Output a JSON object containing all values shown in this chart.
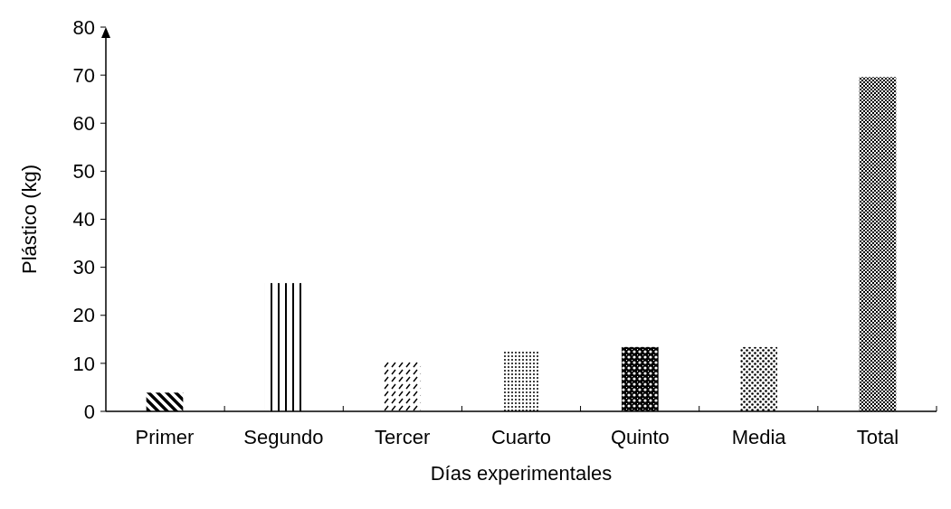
{
  "chart_data": {
    "type": "bar",
    "xlabel": "Días experimentales",
    "ylabel": "Plástico (kg)",
    "categories": [
      "Primer",
      "Segundo",
      "Tercer",
      "Cuarto",
      "Quinto",
      "Media",
      "Total"
    ],
    "values": [
      3.9,
      26.7,
      10.3,
      12.6,
      13.4,
      13.4,
      69.6
    ],
    "color": "#000000",
    "ylim": [
      0,
      80
    ],
    "yticks": [
      0,
      10,
      20,
      30,
      40,
      50,
      60,
      70,
      80
    ],
    "grid": false
  }
}
